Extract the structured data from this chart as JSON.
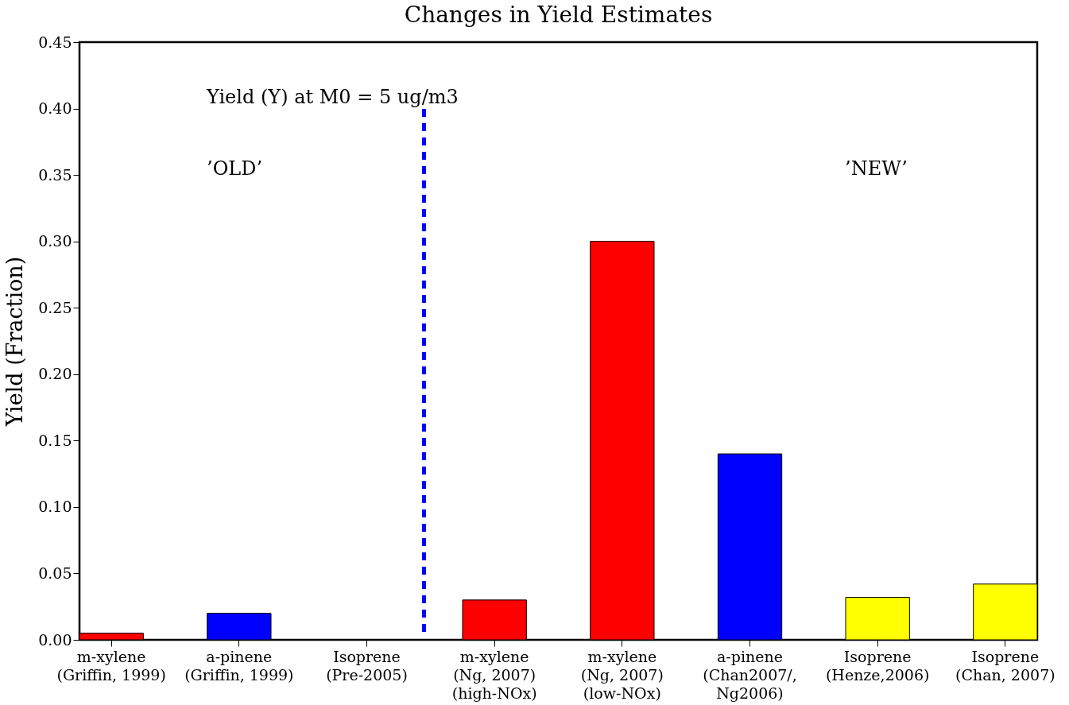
{
  "chart_data": {
    "type": "bar",
    "title": "Changes in Yield Estimates",
    "ylabel": "Yield (Fraction)",
    "categories": [
      "m-xylene\n(Griffin, 1999)",
      "a-pinene\n(Griffin, 1999)",
      "Isoprene\n(Pre-2005)",
      "m-xylene\n(Ng, 2007)\n(high-NOx)",
      "m-xylene\n(Ng, 2007)\n(low-NOx)",
      "a-pinene\n(Chan2007/,\nNg2006)",
      "Isoprene\n(Henze,2006)",
      "Isoprene\n(Chan, 2007)"
    ],
    "values": [
      0.005,
      0.02,
      null,
      0.03,
      0.3,
      0.14,
      0.032,
      0.042
    ],
    "colors": [
      "#ff0000",
      "#0000ff",
      null,
      "#ff0000",
      "#ff0000",
      "#0000ff",
      "#ffff00",
      "#ffff00"
    ],
    "ylim": [
      0,
      0.45
    ],
    "yticks": [
      {
        "value": 0,
        "label": "0.00"
      },
      {
        "value": 0.05,
        "label": "0.05"
      },
      {
        "value": 0.1,
        "label": "0.10"
      },
      {
        "value": 0.15,
        "label": "0.15"
      },
      {
        "value": 0.2,
        "label": "0.20"
      },
      {
        "value": 0.25,
        "label": "0.25"
      },
      {
        "value": 0.3,
        "label": "0.30"
      },
      {
        "value": 0.35,
        "label": "0.35"
      },
      {
        "value": 0.4,
        "label": "0.40"
      },
      {
        "value": 0.45,
        "label": "0.45"
      }
    ],
    "annotations": [
      "Yield (Y) at M0 = 5 ug/m3",
      "’OLD’",
      "’NEW’"
    ],
    "grid": false
  }
}
